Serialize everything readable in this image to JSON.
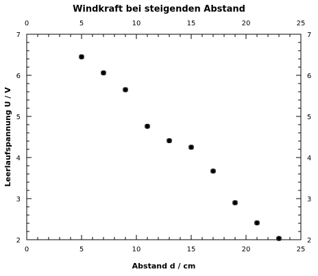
{
  "chart_data": {
    "type": "scatter",
    "title": "Windkraft bei steigenden Abstand",
    "xlabel": "Abstand d / cm",
    "ylabel": "Leerlaufspannung U / V",
    "xlim": [
      0,
      25
    ],
    "ylim": [
      2,
      7
    ],
    "x_major_ticks": [
      0,
      5,
      10,
      15,
      20,
      25
    ],
    "x_minor_step": 1,
    "y_major_ticks": [
      2,
      3,
      4,
      5,
      6,
      7
    ],
    "y_minor_step": 0.2,
    "mirror_axes": true,
    "grid": false,
    "legend": "none",
    "marker_color": "#000000",
    "series": [
      {
        "x": [
          5,
          7,
          9,
          11,
          13,
          15,
          17,
          19,
          21,
          23
        ],
        "y": [
          6.45,
          6.06,
          5.65,
          4.76,
          4.41,
          4.25,
          3.67,
          2.9,
          2.41,
          2.03
        ],
        "x_error": 0.2,
        "y_error": 0.05
      }
    ]
  }
}
